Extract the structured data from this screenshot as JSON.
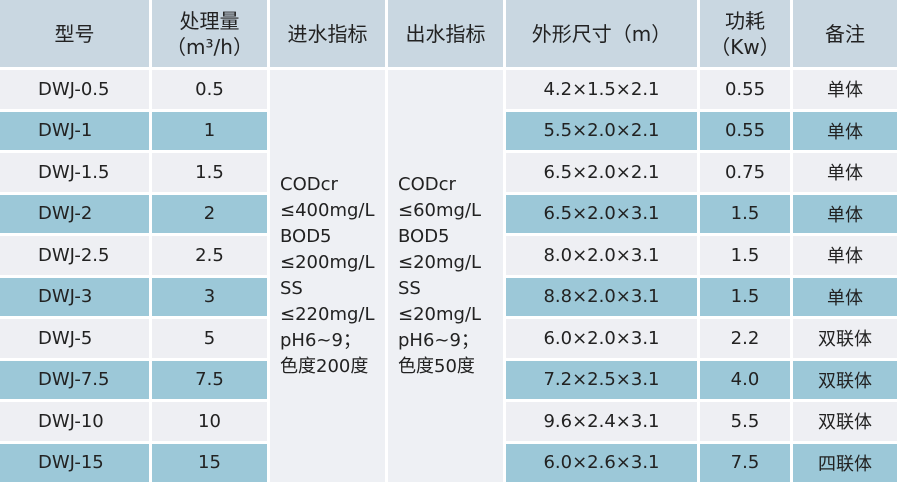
{
  "table": {
    "header": [
      [
        "型号"
      ],
      [
        "处理量",
        "（m³/h）"
      ],
      [
        "进水指标"
      ],
      [
        "出水指标"
      ],
      [
        "外形尺寸（m）"
      ],
      [
        "功耗",
        "（Kw）"
      ],
      [
        "备注"
      ]
    ],
    "rows": [
      [
        "DWJ-0.5",
        "0.5",
        "4.2×1.5×2.1",
        "0.55",
        "单体"
      ],
      [
        "DWJ-1",
        "1",
        "5.5×2.0×2.1",
        "0.55",
        "单体"
      ],
      [
        "DWJ-1.5",
        "1.5",
        "6.5×2.0×2.1",
        "0.75",
        "单体"
      ],
      [
        "DWJ-2",
        "2",
        "6.5×2.0×3.1",
        "1.5",
        "单体"
      ],
      [
        "DWJ-2.5",
        "2.5",
        "8.0×2.0×3.1",
        "1.5",
        "单体"
      ],
      [
        "DWJ-3",
        "3",
        "8.8×2.0×3.1",
        "1.5",
        "单体"
      ],
      [
        "DWJ-5",
        "5",
        "6.0×2.0×3.1",
        "2.2",
        "双联体"
      ],
      [
        "DWJ-7.5",
        "7.5",
        "7.2×2.5×3.1",
        "4.0",
        "双联体"
      ],
      [
        "DWJ-10",
        "10",
        "9.6×2.4×3.1",
        "5.5",
        "双联体"
      ],
      [
        "DWJ-15",
        "15",
        "6.0×2.6×3.1",
        "7.5",
        "四联体"
      ]
    ],
    "inlet": [
      "CODcr",
      "≤400mg/L",
      "BOD5",
      "≤200mg/L",
      "SS",
      "≤220mg/L",
      "pH6~9；",
      "色度200度"
    ],
    "outlet": [
      "CODcr",
      "≤60mg/L",
      "BOD5",
      "≤20mg/L",
      "SS",
      "≤20mg/L",
      "pH6~9；",
      "色度50度"
    ]
  }
}
